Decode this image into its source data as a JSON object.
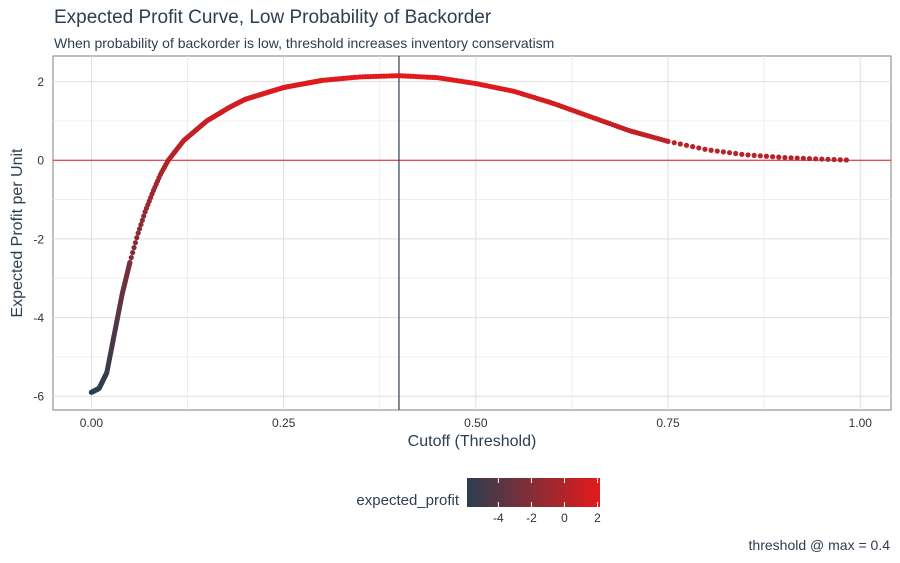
{
  "title": "Expected Profit Curve, Low Probability of Backorder",
  "subtitle": "When probability of backorder is low, threshold increases inventory conservatism",
  "caption": "threshold @ max = 0.4",
  "chart_data": {
    "type": "scatter",
    "title": "Expected Profit Curve, Low Probability of Backorder",
    "subtitle": "When probability of backorder is low, threshold increases inventory conservatism",
    "xlabel": "Cutoff (Threshold)",
    "ylabel": "Expected Profit per Unit",
    "xlim": [
      -0.05,
      1.04
    ],
    "ylim": [
      -6.35,
      2.65
    ],
    "x_ticks": [
      0,
      0.25,
      0.5,
      0.75,
      1
    ],
    "x_tick_labels": [
      "0.00",
      "0.25",
      "0.50",
      "0.75",
      "1.00"
    ],
    "y_ticks": [
      -6,
      -4,
      -2,
      0,
      2
    ],
    "y_tick_labels": [
      "-6",
      "-4",
      "-2",
      "0",
      "2"
    ],
    "grid": true,
    "hline": 0,
    "vline": 0.4,
    "color_scale": {
      "low": "#2c3e50",
      "high": "#e31a1c",
      "min": -5.9,
      "max": 2.15
    },
    "legend": {
      "title": "expected_profit",
      "position": "bottom",
      "ticks": [
        -4,
        -2,
        0,
        2
      ],
      "tick_labels": [
        "-4",
        "-2",
        "0",
        "2"
      ]
    },
    "curve_points": [
      {
        "x": 0.0,
        "y": -5.9
      },
      {
        "x": 0.01,
        "y": -5.8
      },
      {
        "x": 0.02,
        "y": -5.4
      },
      {
        "x": 0.03,
        "y": -4.4
      },
      {
        "x": 0.04,
        "y": -3.4
      },
      {
        "x": 0.05,
        "y": -2.6
      },
      {
        "x": 0.06,
        "y": -1.9
      },
      {
        "x": 0.07,
        "y": -1.3
      },
      {
        "x": 0.08,
        "y": -0.8
      },
      {
        "x": 0.09,
        "y": -0.35
      },
      {
        "x": 0.1,
        "y": 0.0
      },
      {
        "x": 0.12,
        "y": 0.5
      },
      {
        "x": 0.15,
        "y": 1.0
      },
      {
        "x": 0.18,
        "y": 1.35
      },
      {
        "x": 0.2,
        "y": 1.55
      },
      {
        "x": 0.25,
        "y": 1.85
      },
      {
        "x": 0.3,
        "y": 2.03
      },
      {
        "x": 0.35,
        "y": 2.12
      },
      {
        "x": 0.4,
        "y": 2.15
      },
      {
        "x": 0.45,
        "y": 2.1
      },
      {
        "x": 0.5,
        "y": 1.95
      },
      {
        "x": 0.55,
        "y": 1.75
      },
      {
        "x": 0.6,
        "y": 1.45
      },
      {
        "x": 0.65,
        "y": 1.1
      },
      {
        "x": 0.7,
        "y": 0.75
      },
      {
        "x": 0.75,
        "y": 0.48
      },
      {
        "x": 0.8,
        "y": 0.27
      },
      {
        "x": 0.85,
        "y": 0.14
      },
      {
        "x": 0.9,
        "y": 0.07
      },
      {
        "x": 0.95,
        "y": 0.03
      },
      {
        "x": 0.99,
        "y": 0.0
      }
    ],
    "point_density": 250
  }
}
